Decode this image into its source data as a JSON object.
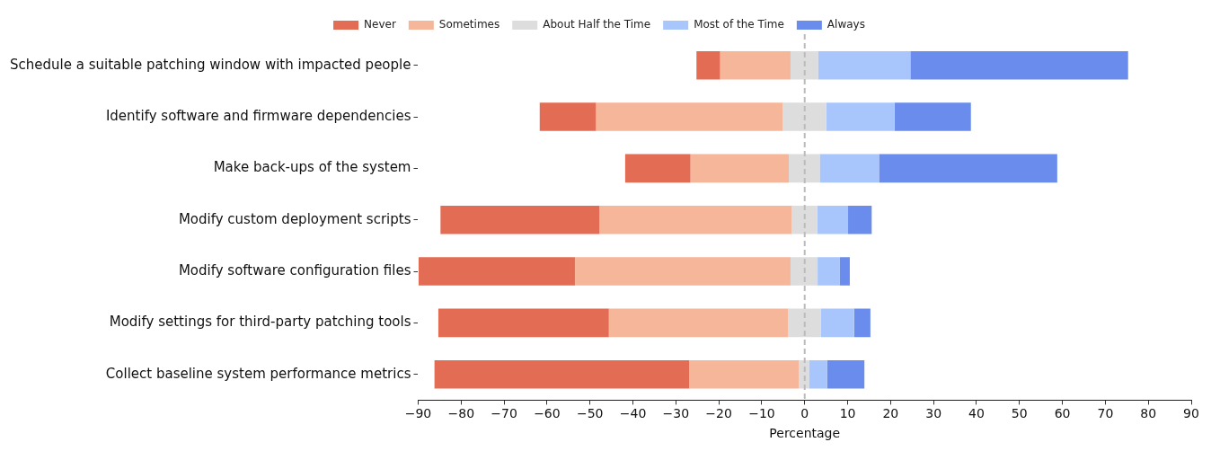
{
  "chart_data": {
    "type": "bar",
    "orientation": "horizontal",
    "categories": [
      "Schedule a suitable patching window with impacted people",
      "Identify software and firmware dependencies",
      "Make back-ups of the system",
      "Modify custom deployment scripts",
      "Modify software configuration files",
      "Modify settings for third-party patching tools",
      "Collect baseline system performance metrics"
    ],
    "series": [
      {
        "name": "Never",
        "color": "#e36c55",
        "values": [
          5.5,
          13.1,
          15.2,
          37.0,
          36.4,
          39.7,
          59.3
        ],
        "base": [
          -25.2,
          -61.7,
          -41.8,
          -84.8,
          -89.9,
          -85.3,
          -86.2
        ]
      },
      {
        "name": "Sometimes",
        "color": "#f6b69a",
        "values": [
          16.4,
          43.5,
          22.9,
          44.8,
          50.2,
          41.7,
          25.5
        ],
        "base": [
          -19.7,
          -48.6,
          -26.6,
          -47.8,
          -53.5,
          -45.6,
          -26.9
        ]
      },
      {
        "name": "About Half the Time",
        "color": "#dcdddc",
        "values": [
          6.4,
          10.1,
          7.2,
          5.9,
          6.3,
          7.7,
          2.4
        ],
        "base": [
          -3.3,
          -5.1,
          -3.7,
          -3.0,
          -3.3,
          -3.9,
          -1.4
        ]
      },
      {
        "name": "Most of the Time",
        "color": "#a8c6fb",
        "values": [
          21.5,
          15.9,
          13.8,
          7.2,
          5.2,
          7.7,
          4.2
        ],
        "base": [
          3.1,
          5.0,
          3.5,
          2.9,
          3.0,
          3.8,
          1.0
        ]
      },
      {
        "name": "Always",
        "color": "#6a8ded",
        "values": [
          50.7,
          17.8,
          41.5,
          5.5,
          2.3,
          3.8,
          8.7
        ],
        "base": [
          24.6,
          20.9,
          17.3,
          10.1,
          8.2,
          11.5,
          5.2
        ]
      }
    ],
    "xlabel": "Percentage",
    "xlim": [
      -90,
      90
    ],
    "xticks": [
      {
        "value": -90,
        "label": "−90"
      },
      {
        "value": -80,
        "label": "−80"
      },
      {
        "value": -70,
        "label": "−70"
      },
      {
        "value": -60,
        "label": "−60"
      },
      {
        "value": -50,
        "label": "−50"
      },
      {
        "value": -40,
        "label": "−40"
      },
      {
        "value": -30,
        "label": "−30"
      },
      {
        "value": -20,
        "label": "−20"
      },
      {
        "value": -10,
        "label": "−10"
      },
      0,
      10,
      20,
      30,
      40,
      50,
      60,
      70,
      80,
      90
    ],
    "ref_lines": [
      {
        "axis": "x",
        "value": 0,
        "color": "#bbbbbb",
        "line_style": "dashed"
      }
    ],
    "legend": "top",
    "grid": false
  }
}
